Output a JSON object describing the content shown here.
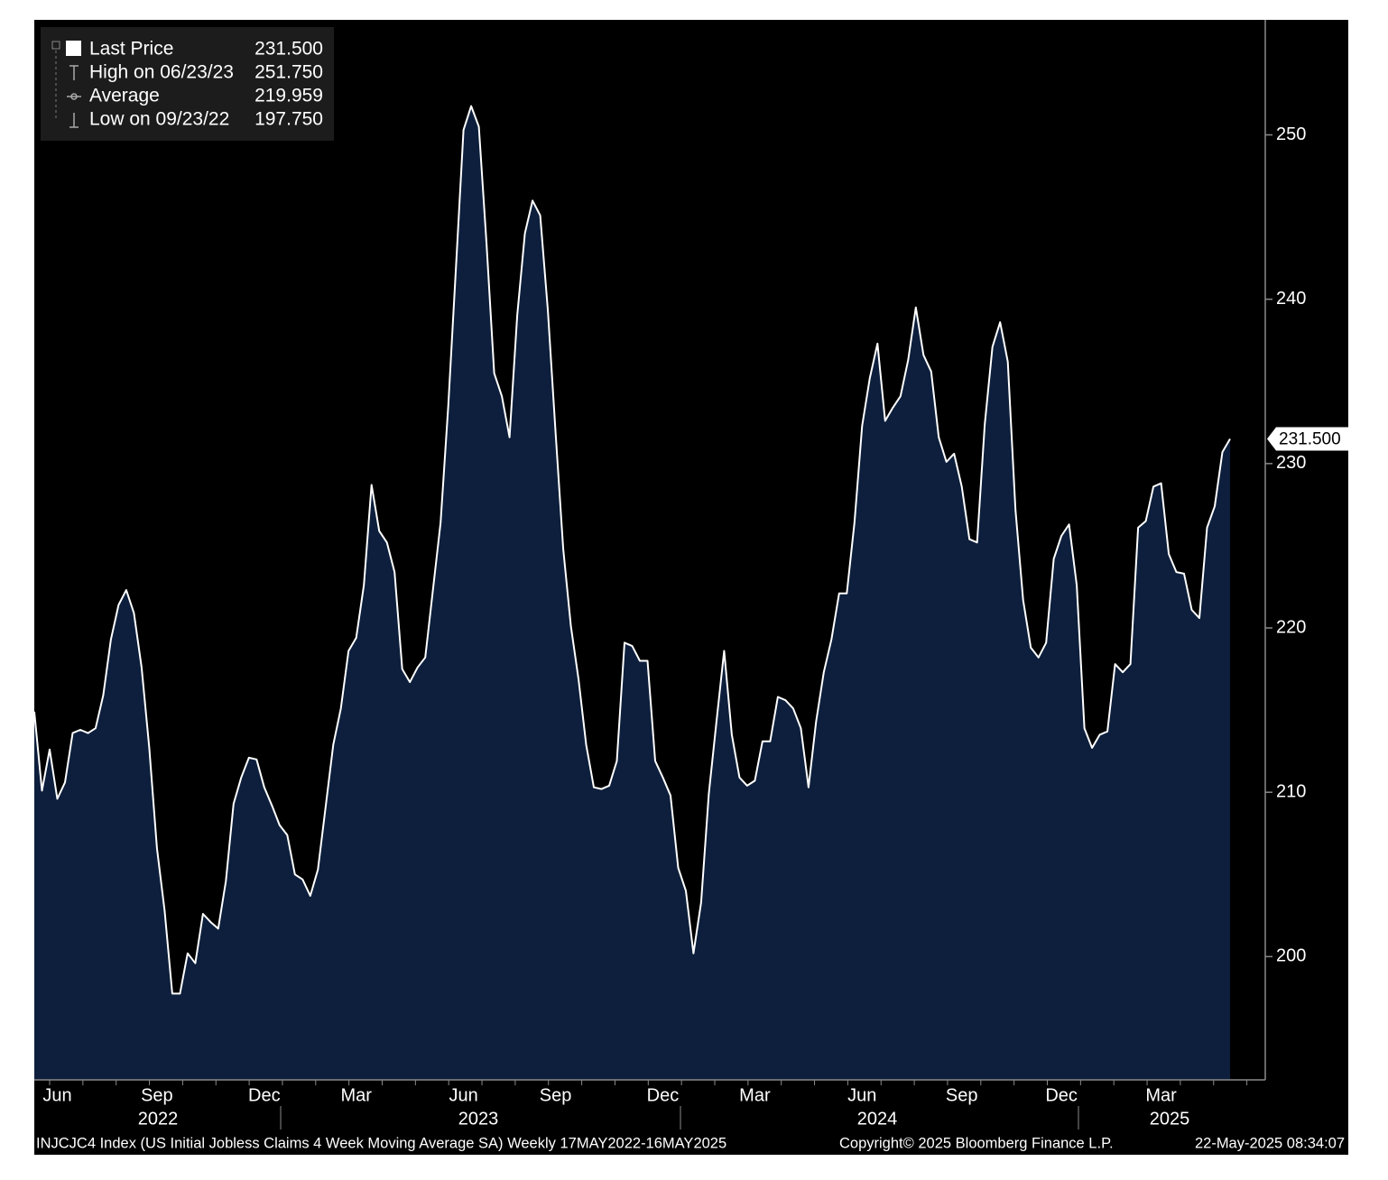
{
  "chart_data": {
    "type": "area",
    "series": [
      {
        "name": "Last Price",
        "color": "#ffffff",
        "fill": "#0d1f3c",
        "values": [
          214.9,
          210.1,
          212.6,
          209.6,
          210.6,
          213.6,
          213.8,
          213.6,
          213.9,
          215.9,
          219.3,
          221.4,
          222.3,
          220.9,
          217.6,
          212.7,
          206.6,
          202.8,
          197.75,
          197.75,
          200.2,
          199.6,
          202.6,
          202.1,
          201.7,
          204.6,
          209.3,
          210.9,
          212.1,
          212.0,
          210.3,
          209.2,
          208.0,
          207.4,
          205.0,
          204.7,
          203.7,
          205.3,
          209.1,
          212.9,
          215.1,
          218.6,
          219.4,
          222.6,
          228.7,
          225.9,
          225.2,
          223.4,
          217.5,
          216.7,
          217.6,
          218.2,
          222.3,
          226.4,
          233.5,
          241.8,
          250.3,
          251.75,
          250.5,
          243.4,
          235.5,
          234.1,
          231.6,
          239.0,
          244.0,
          246.0,
          245.1,
          239.3,
          231.9,
          224.8,
          220.1,
          216.9,
          212.9,
          210.3,
          210.2,
          210.4,
          211.9,
          219.1,
          218.9,
          218.0,
          218.0,
          211.9,
          210.9,
          209.8,
          205.4,
          204.0,
          200.2,
          203.3,
          209.9,
          214.3,
          218.6,
          213.5,
          210.9,
          210.4,
          210.7,
          213.1,
          213.1,
          215.8,
          215.6,
          215.1,
          213.9,
          210.3,
          214.3,
          217.3,
          219.3,
          222.1,
          222.1,
          226.4,
          232.3,
          235.2,
          237.3,
          232.6,
          233.4,
          234.1,
          236.3,
          239.5,
          236.6,
          235.6,
          231.6,
          230.1,
          230.6,
          228.6,
          225.4,
          225.2,
          232.4,
          237.1,
          238.6,
          236.2,
          227.2,
          221.7,
          218.8,
          218.2,
          219.1,
          224.2,
          225.6,
          226.3,
          222.6,
          213.9,
          212.7,
          213.5,
          213.7,
          217.8,
          217.3,
          217.8,
          226.1,
          226.5,
          228.6,
          228.8,
          224.5,
          223.4,
          223.3,
          221.1,
          220.6,
          226.1,
          227.4,
          230.7,
          231.5
        ]
      }
    ],
    "categories": [
      null,
      null,
      null,
      "Jun",
      null,
      null,
      null,
      null,
      null,
      null,
      null,
      null,
      null,
      null,
      null,
      null,
      "Sep",
      null,
      null,
      null,
      null,
      null,
      null,
      null,
      null,
      null,
      null,
      null,
      null,
      null,
      "Dec",
      null,
      null,
      null,
      null,
      null,
      null,
      null,
      null,
      null,
      null,
      null,
      "Mar",
      null,
      null,
      null,
      null,
      null,
      null,
      null,
      null,
      null,
      null,
      null,
      null,
      null,
      "Jun",
      null,
      null,
      null,
      null,
      null,
      null,
      null,
      null,
      null,
      null,
      null,
      "Sep",
      null,
      null,
      null,
      null,
      null,
      null,
      null,
      null,
      null,
      null,
      null,
      null,
      null,
      "Dec",
      null,
      null,
      null,
      null,
      null,
      null,
      null,
      null,
      null,
      null,
      null,
      "Mar",
      null,
      null,
      null,
      null,
      null,
      null,
      null,
      null,
      null,
      null,
      null,
      null,
      null,
      "Jun",
      null,
      null,
      null,
      null,
      null,
      null,
      null,
      null,
      null,
      null,
      null,
      null,
      "Sep",
      null,
      null,
      null,
      null,
      null,
      null,
      null,
      null,
      null,
      null,
      null,
      null,
      "Dec",
      null,
      null,
      null,
      null,
      null,
      null,
      null,
      null,
      null,
      null,
      null,
      null,
      "Mar",
      null,
      null,
      null,
      null,
      null,
      null,
      null,
      null,
      null
    ],
    "years": [
      "2022",
      "2023",
      "2024",
      "2025"
    ],
    "ylim": [
      192.5,
      257
    ],
    "yticks": [
      200,
      210,
      220,
      230,
      240,
      250
    ],
    "last_price_label": "231.500",
    "legend": [
      {
        "label": "Last Price",
        "value": "231.500"
      },
      {
        "label": "High on 06/23/23",
        "value": "251.750"
      },
      {
        "label": "Average",
        "value": "219.959"
      },
      {
        "label": "Low on 09/23/22",
        "value": "197.750"
      }
    ],
    "footer": {
      "description": "INJCJC4 Index (US Initial Jobless Claims 4 Week Moving Average SA)  Weekly 17MAY2022-16MAY2025",
      "copyright": "Copyright© 2025 Bloomberg Finance L.P.",
      "timestamp": "22-May-2025 08:34:07"
    }
  }
}
